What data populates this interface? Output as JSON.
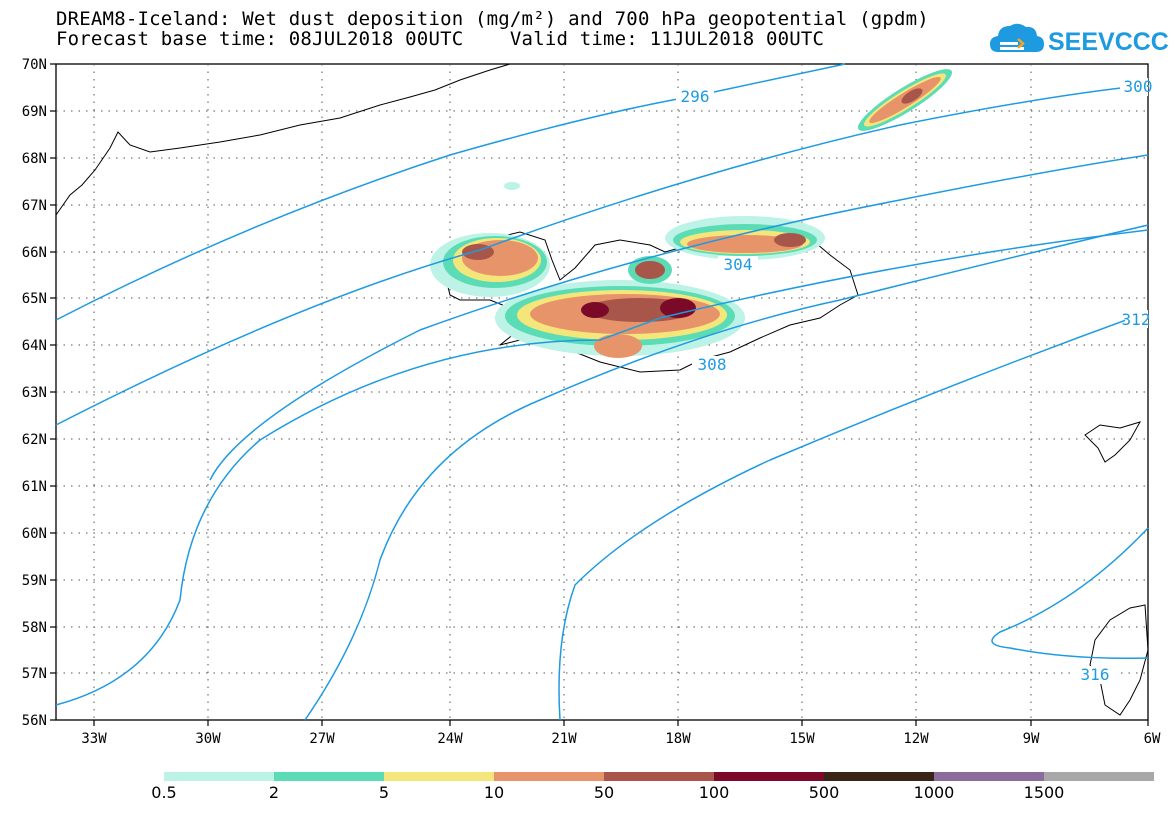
{
  "header": {
    "title_line1": "DREAM8-Iceland: Wet dust deposition (mg/m²) and 700 hPa geopotential (gpdm)",
    "title_line2": "Forecast base time: 08JUL2018 00UTC    Valid time: 11JUL2018 00UTC"
  },
  "logo": {
    "text": "SEEVCCC",
    "icon": "cloud-logo-icon",
    "color": "#1e9be0"
  },
  "map": {
    "lat_labels": [
      "70N",
      "69N",
      "68N",
      "67N",
      "66N",
      "65N",
      "64N",
      "63N",
      "62N",
      "61N",
      "60N",
      "59N",
      "58N",
      "57N",
      "56N"
    ],
    "lon_labels": [
      "33W",
      "30W",
      "27W",
      "24W",
      "21W",
      "18W",
      "15W",
      "12W",
      "9W",
      "6W"
    ],
    "contour_labels": [
      "296",
      "300",
      "304",
      "308",
      "312",
      "316"
    ],
    "contour_color": "#1e9be0"
  },
  "legend": {
    "labels": [
      "0.5",
      "2",
      "5",
      "10",
      "50",
      "100",
      "500",
      "1000",
      "1500"
    ],
    "colors": [
      "#bdf2e6",
      "#5cdcb4",
      "#f5e67c",
      "#e8946a",
      "#a8564a",
      "#7a0a28",
      "#3a2418",
      "#8c6c9c",
      "#a8a8a8"
    ]
  }
}
